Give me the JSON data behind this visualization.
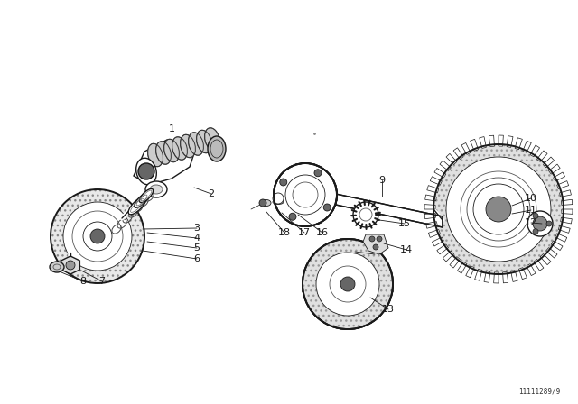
{
  "bg_color": "#ffffff",
  "line_color": "#1a1a1a",
  "text_color": "#1a1a1a",
  "watermark": "11111289/9",
  "figsize": [
    6.4,
    4.48
  ],
  "dpi": 100
}
